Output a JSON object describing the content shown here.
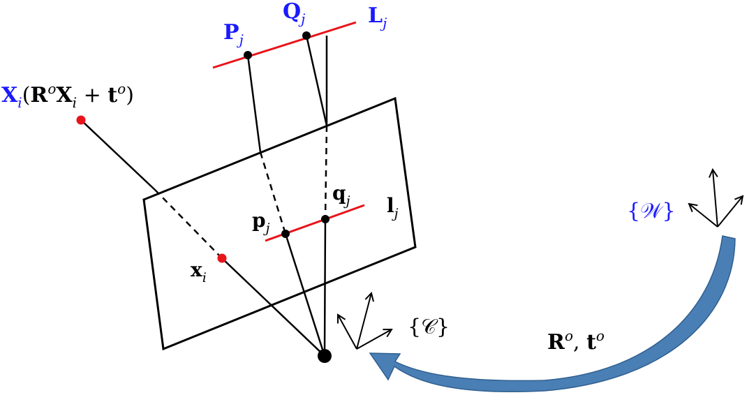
{
  "labels": {
    "P_main": "P",
    "P_sub": "j",
    "Q_main": "Q",
    "Q_sub": "j",
    "L_main": "L",
    "L_sub": "j",
    "X_main": "X",
    "X_sub": "i",
    "X_paren_open": "(",
    "X_R": "R",
    "X_R_sup": "o",
    "X_X": "X",
    "X_X_sub": "i",
    "X_plus": " + ",
    "X_t": "t",
    "X_t_sup": "o",
    "X_paren_close": ")",
    "q_main": "q",
    "q_sub": "j",
    "l_main": "l",
    "l_sub": "j",
    "p_main": "p",
    "p_sub": "j",
    "x_main": "x",
    "x_sub": "i",
    "C_frame": "{𝒞}",
    "W_frame": "{𝒲}",
    "transform_R": "R",
    "transform_R_sup": "o",
    "transform_comma": ", ",
    "transform_t": "t",
    "transform_t_sup": "o"
  },
  "colors": {
    "line3d": "#e8141a",
    "point3d": "#e8141a",
    "blue_label": "#1a1aff",
    "arrow_fill": "#4a7fb5",
    "arrow_stroke": "#2f5f8f"
  }
}
